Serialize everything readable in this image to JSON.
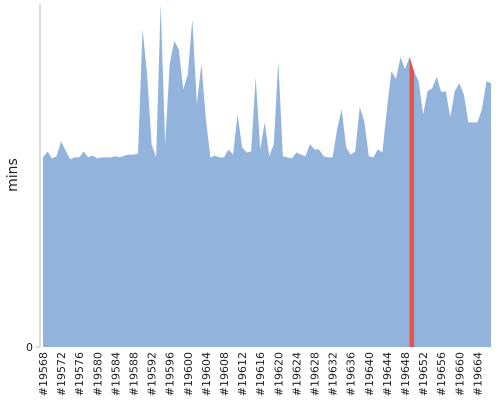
{
  "chart_data": {
    "type": "area",
    "y_label": "mins",
    "categories": [
      "#19568",
      null,
      null,
      null,
      "#19572",
      null,
      null,
      null,
      "#19576",
      null,
      null,
      null,
      "#19580",
      null,
      null,
      null,
      "#19584",
      null,
      null,
      null,
      "#19588",
      null,
      null,
      null,
      "#19592",
      null,
      null,
      null,
      "#19596",
      null,
      null,
      null,
      "#19600",
      null,
      null,
      null,
      "#19604",
      null,
      null,
      null,
      "#19608",
      null,
      null,
      null,
      "#19612",
      null,
      null,
      null,
      "#19616",
      null,
      null,
      null,
      "#19620",
      null,
      null,
      null,
      "#19624",
      null,
      null,
      null,
      "#19628",
      null,
      null,
      null,
      "#19632",
      null,
      null,
      null,
      "#19636",
      null,
      null,
      null,
      "#19640",
      null,
      null,
      null,
      "#19644",
      null,
      null,
      null,
      "#19648",
      null,
      null,
      null,
      "#19652",
      null,
      null,
      null,
      "#19656",
      null,
      null,
      null,
      "#19660",
      null,
      null,
      null,
      "#19664",
      null,
      null,
      null
    ],
    "values": [
      55.3,
      57.0,
      55.0,
      55.6,
      59.9,
      57.3,
      54.7,
      55.3,
      55.3,
      57.0,
      55.3,
      55.8,
      55.0,
      55.3,
      55.3,
      55.3,
      55.6,
      55.3,
      55.8,
      56.1,
      56.1,
      56.4,
      92.7,
      79.5,
      59.1,
      55.3,
      100,
      59.1,
      82.5,
      89.2,
      86.8,
      75.1,
      79.5,
      95.6,
      70.8,
      82.5,
      66.4,
      55.3,
      55.8,
      55.3,
      55.3,
      57.6,
      56.1,
      67.8,
      58.2,
      56.7,
      57.0,
      78.7,
      57.6,
      65.5,
      55.6,
      59.1,
      83.3,
      55.6,
      55.3,
      55.0,
      56.7,
      56.1,
      55.6,
      59.1,
      57.6,
      57.6,
      55.6,
      55.3,
      55.3,
      63.5,
      69.3,
      58.2,
      56.1,
      57.0,
      69.9,
      65.8,
      55.6,
      55.3,
      57.6,
      56.7,
      69.3,
      80.4,
      78.1,
      84.5,
      81.0,
      84.5,
      80.4,
      77.5,
      67.8,
      74.6,
      75.4,
      78.7,
      74.3,
      74.6,
      67.0,
      74.6,
      76.9,
      73.7,
      65.5,
      65.5,
      65.5,
      69.3,
      77.5,
      76.9
    ],
    "color": "#92b3dc",
    "highlight_index": 82,
    "highlight_color": "#e8504a",
    "ylim": [
      0,
      100
    ],
    "yticks": [
      0
    ]
  }
}
